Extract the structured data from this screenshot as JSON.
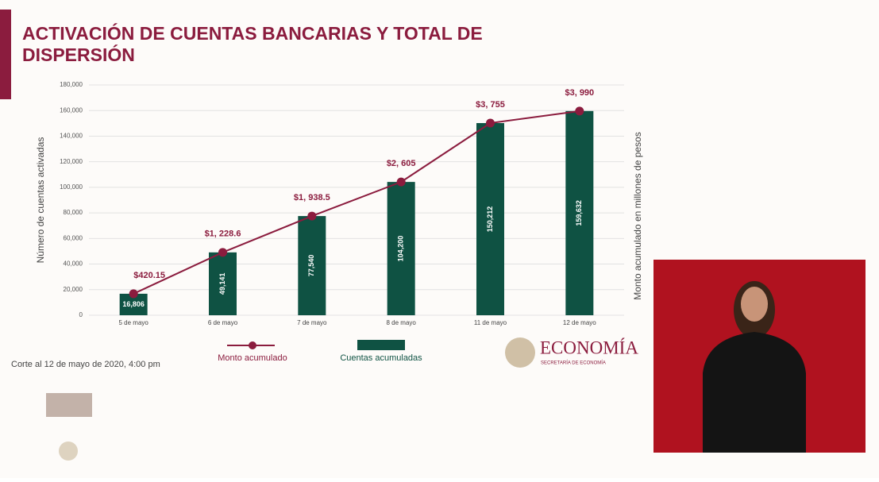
{
  "title": "ACTIVACIÓN DE CUENTAS BANCARIAS Y TOTAL DE DISPERSIÓN",
  "footnote": "Corte al 12 de mayo de 2020, 4:00 pm",
  "brand": {
    "name": "ECONOMÍA",
    "subtitle": "SECRETARÍA DE ECONOMÍA"
  },
  "chart_data": {
    "type": "bar",
    "y_label": "Número de cuentas activadas",
    "y2_label": "Monto acumulado en millones de pesos",
    "categories": [
      "5 de mayo",
      "6 de mayo",
      "7 de mayo",
      "8 de mayo",
      "11 de mayo",
      "12 de mayo"
    ],
    "ylim": [
      0,
      180000
    ],
    "yticks": [
      0,
      {
        "value": 20000,
        "label": "20,000"
      },
      {
        "value": 40000,
        "label": "40,000"
      },
      {
        "value": 60000,
        "label": "60,000"
      },
      {
        "value": 80000,
        "label": "80,000"
      },
      {
        "value": 100000,
        "label": "100,000"
      },
      {
        "value": 120000,
        "label": "120,000"
      },
      {
        "value": 140000,
        "label": "140,000"
      },
      {
        "value": 160000,
        "label": "160,000"
      },
      {
        "value": 180000,
        "label": "180,000"
      }
    ],
    "y2lim": [
      0,
      4500
    ],
    "grid": true,
    "series": [
      {
        "name": "Monto acumulado",
        "type": "line",
        "axis": "y2",
        "color": "#8b1c3e",
        "values": [
          420.15,
          1228.6,
          1938.5,
          2605,
          3755,
          3990
        ],
        "value_labels": [
          "$420.15",
          "$1, 228.6",
          "$1, 938.5",
          "$2, 605",
          "$3, 755",
          "$3, 990"
        ]
      },
      {
        "name": "Cuentas acumuladas",
        "type": "bar",
        "color": "#0f5243",
        "values": [
          16806,
          49141,
          77540,
          104200,
          150212,
          159632
        ],
        "value_labels": [
          "16,806",
          "49,141",
          "77,540",
          "104,200",
          "150,212",
          "159,632"
        ]
      }
    ]
  }
}
